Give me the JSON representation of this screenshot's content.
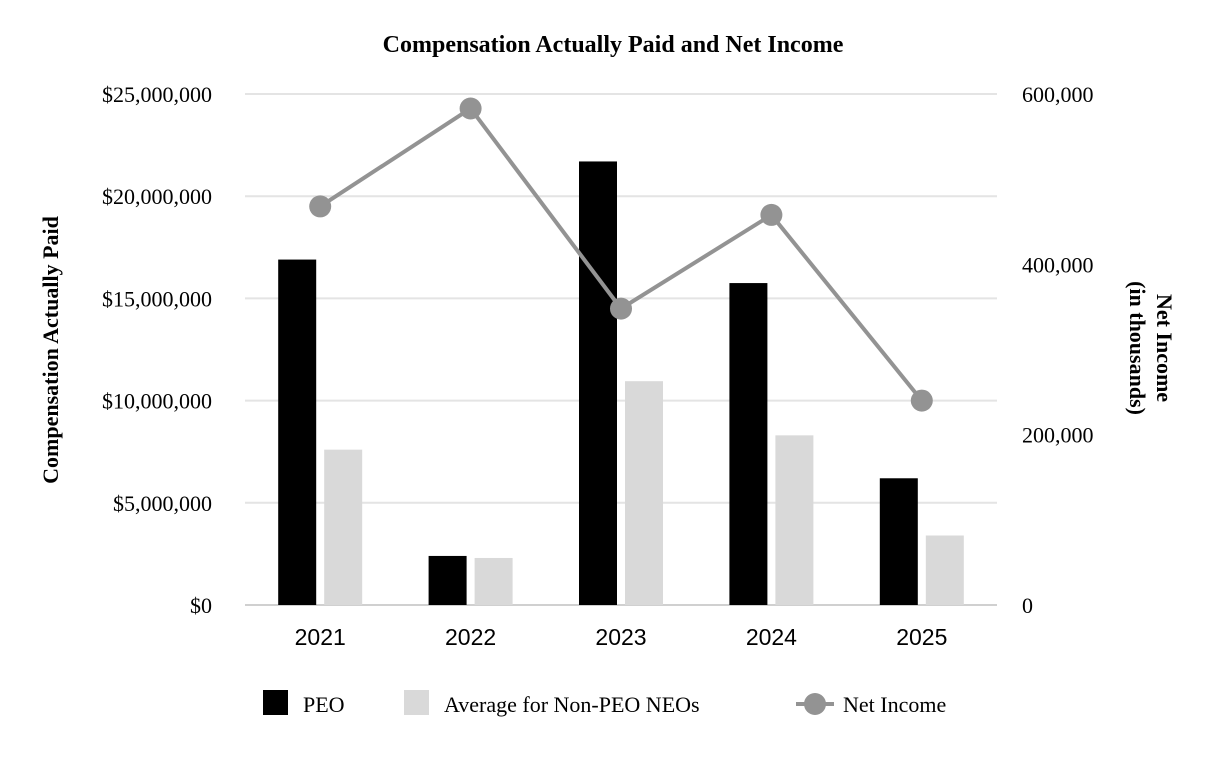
{
  "chart_data": {
    "type": "bar",
    "title": "Compensation Actually Paid and Net Income",
    "categories": [
      "2021",
      "2022",
      "2023",
      "2024",
      "2025"
    ],
    "series": [
      {
        "name": "PEO",
        "kind": "bar",
        "axis": "left",
        "color": "#000000",
        "values": [
          16900000,
          2400000,
          21700000,
          15750000,
          6200000
        ]
      },
      {
        "name": "Average for Non-PEO NEOs",
        "kind": "bar",
        "axis": "left",
        "color": "#d9d9d9",
        "values": [
          7600000,
          2300000,
          10950000,
          8300000,
          3400000
        ]
      },
      {
        "name": "Net Income",
        "kind": "line",
        "axis": "right",
        "color": "#939393",
        "values": [
          468000,
          583000,
          348000,
          458000,
          240000
        ]
      }
    ],
    "left_axis": {
      "label": "Compensation Actually Paid",
      "ylim": [
        0,
        25000000
      ],
      "ticks": [
        0,
        5000000,
        10000000,
        15000000,
        20000000,
        25000000
      ],
      "tick_labels": [
        "$0",
        "$5,000,000",
        "$10,000,000",
        "$15,000,000",
        "$20,000,000",
        "$25,000,000"
      ]
    },
    "right_axis": {
      "label_line1": "Net Income",
      "label_line2": "(in thousands)",
      "ylim": [
        0,
        600000
      ],
      "ticks": [
        0,
        200000,
        400000,
        600000
      ],
      "tick_labels": [
        "0",
        "200,000",
        "400,000",
        "600,000"
      ]
    },
    "grid": true,
    "legend": {
      "position": "bottom",
      "items": [
        "PEO",
        "Average for Non-PEO NEOs",
        "Net Income"
      ]
    },
    "gridline_color": "#e4e4e4",
    "text_color": "#000000"
  }
}
